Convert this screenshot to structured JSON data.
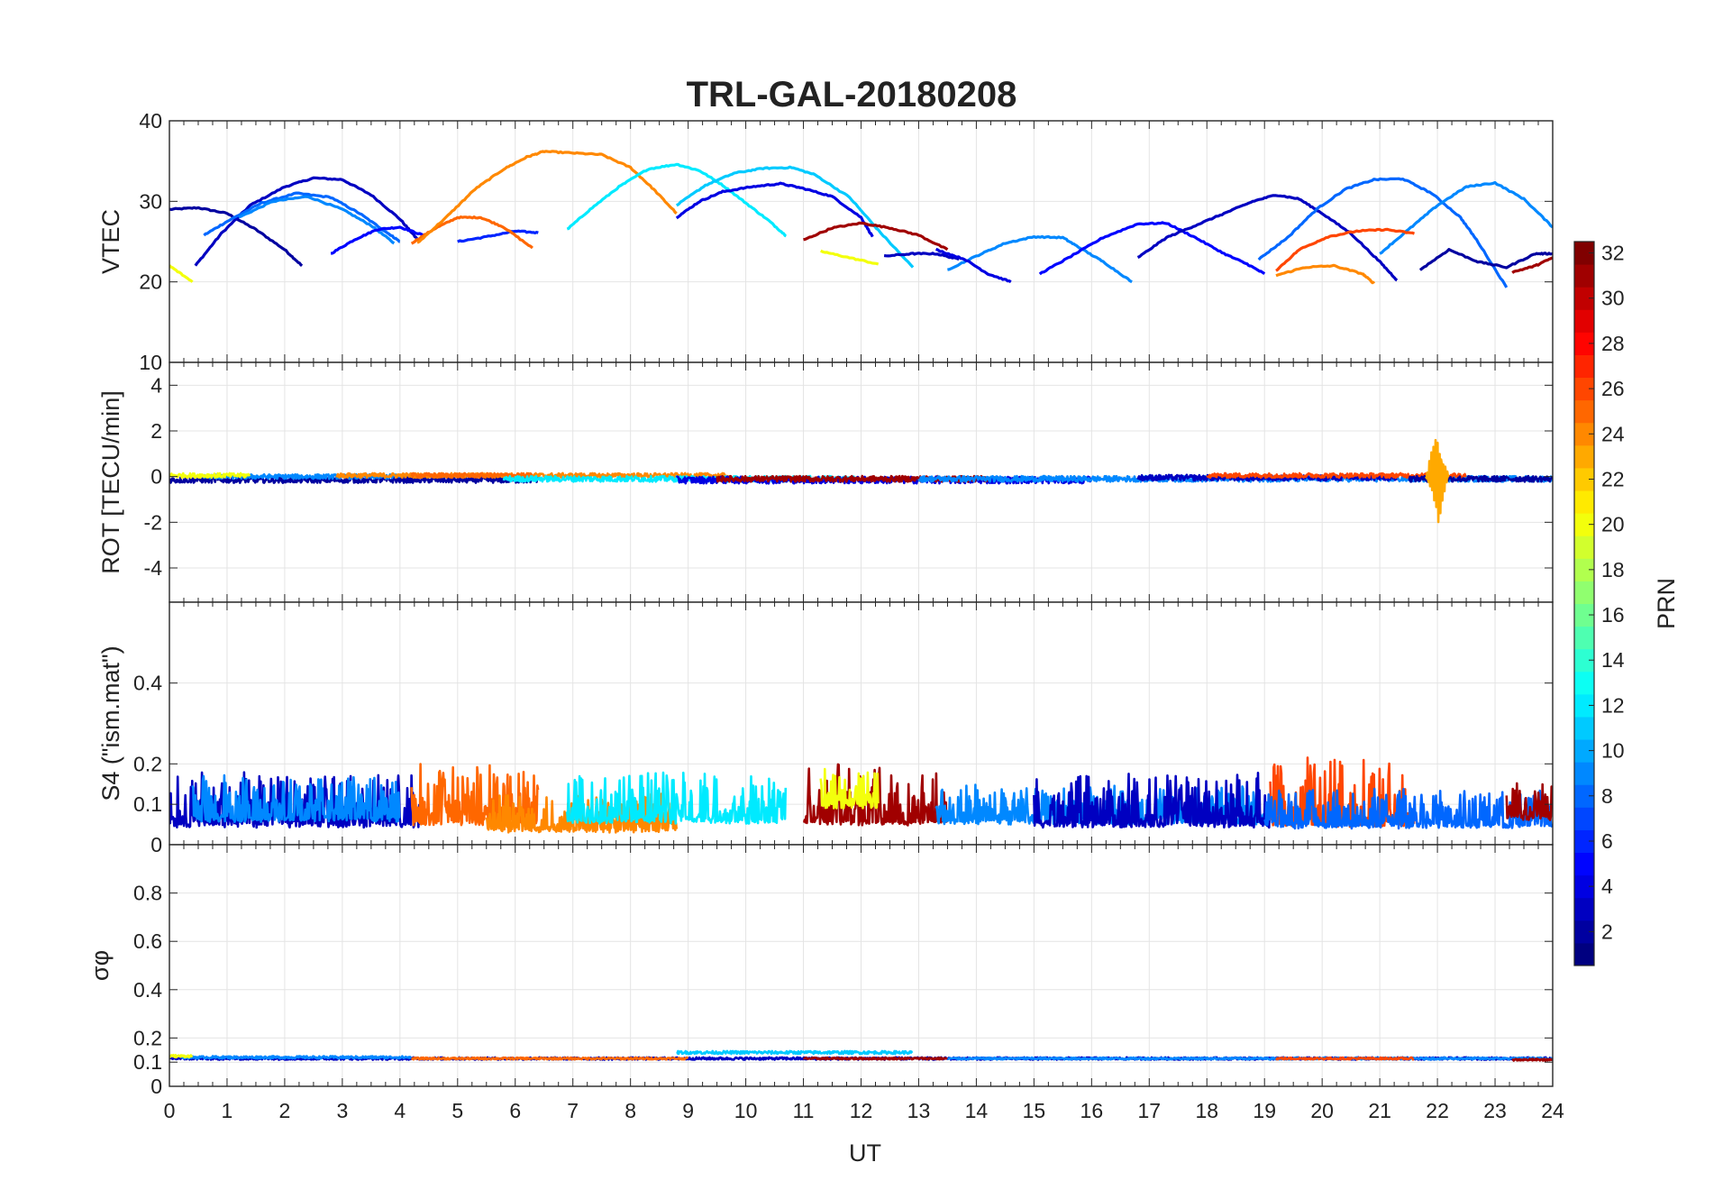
{
  "chart_data": {
    "type": "line",
    "title": "TRL-GAL-20180208",
    "xlabel": "UT",
    "xlim": [
      0,
      24
    ],
    "xticks": [
      "0",
      "1",
      "2",
      "3",
      "4",
      "5",
      "6",
      "7",
      "8",
      "9",
      "10",
      "11",
      "12",
      "13",
      "14",
      "15",
      "16",
      "17",
      "18",
      "19",
      "20",
      "21",
      "22",
      "23",
      "24"
    ],
    "colorbar": {
      "label": "PRN",
      "clim": [
        1,
        32
      ],
      "ticks": [
        "2",
        "4",
        "6",
        "8",
        "10",
        "12",
        "14",
        "16",
        "18",
        "20",
        "22",
        "24",
        "26",
        "28",
        "30",
        "32"
      ],
      "colormap": "jet"
    },
    "panels": [
      {
        "name": "vtec",
        "ylabel": "VTEC",
        "ylim": [
          10,
          40
        ],
        "yticks": [
          "10",
          "20",
          "30",
          "40"
        ],
        "series": [
          {
            "prn": 2,
            "x": [
              0.0,
              0.5,
              1.0,
              1.5,
              2.0,
              2.3
            ],
            "y": [
              29,
              29.2,
              28.5,
              26.5,
              24,
              22
            ]
          },
          {
            "prn": 3,
            "x": [
              0.45,
              0.9,
              1.4,
              2.0,
              2.5,
              3.0,
              3.5,
              4.0,
              4.3
            ],
            "y": [
              22,
              26,
              29.5,
              31.8,
              32.9,
              32.7,
              30.8,
              27.8,
              25.3
            ]
          },
          {
            "prn": 8,
            "x": [
              0.6,
              1.0,
              1.6,
              2.2,
              2.8,
              3.3,
              3.8,
              4.0
            ],
            "y": [
              25.8,
              27.5,
              29.8,
              31,
              30.5,
              28.5,
              26,
              25
            ]
          },
          {
            "prn": 9,
            "x": [
              1.2,
              1.8,
              2.4,
              3.0,
              3.5,
              3.9
            ],
            "y": [
              28,
              30,
              30.6,
              29,
              27,
              24.8
            ]
          },
          {
            "prn": 5,
            "x": [
              2.8,
              3.2,
              3.6,
              4.0,
              4.4
            ],
            "y": [
              23.5,
              25.2,
              26.5,
              26.8,
              25.8
            ]
          },
          {
            "prn": 6,
            "x": [
              5.0,
              5.5,
              6.0,
              6.4
            ],
            "y": [
              25,
              25.6,
              26.3,
              26.1
            ]
          },
          {
            "prn": 25,
            "x": [
              4.2,
              4.6,
              5.0,
              5.4,
              5.8,
              6.3
            ],
            "y": [
              24.8,
              26.6,
              28,
              28,
              26.8,
              24.2
            ]
          },
          {
            "prn": 24,
            "x": [
              4.3,
              4.8,
              5.3,
              5.8,
              6.2,
              6.5,
              7.0,
              7.5,
              8.0,
              8.4,
              8.8
            ],
            "y": [
              24.8,
              28,
              31.5,
              34,
              35.5,
              36.2,
              36,
              35.8,
              34.2,
              31.5,
              28.5
            ]
          },
          {
            "prn": 12,
            "x": [
              6.9,
              7.3,
              7.8,
              8.3,
              8.8,
              9.2,
              9.6,
              10.0,
              10.4,
              10.7
            ],
            "y": [
              26.5,
              29,
              31.8,
              34,
              34.6,
              33.8,
              32,
              29.8,
              27.6,
              25.7
            ]
          },
          {
            "prn": 4,
            "x": [
              8.8,
              9.2,
              9.6,
              10.1,
              10.6,
              11.0,
              11.5,
              12.0,
              12.2
            ],
            "y": [
              28,
              30,
              31.2,
              31.8,
              32.2,
              31.6,
              30.6,
              28,
              25.6
            ]
          },
          {
            "prn": 11,
            "x": [
              8.8,
              9.3,
              9.8,
              10.3,
              10.8,
              11.2,
              11.8,
              12.3,
              12.9
            ],
            "y": [
              29.5,
              32,
              33.5,
              34.1,
              34.2,
              33.3,
              30.5,
              26.4,
              21.8
            ]
          },
          {
            "prn": 31,
            "x": [
              11.0,
              11.5,
              12.0,
              12.5,
              13.0,
              13.5
            ],
            "y": [
              25.2,
              26.7,
              27.3,
              26.7,
              25.8,
              24
            ]
          },
          {
            "prn": 20,
            "x": [
              11.3,
              11.8,
              12.3
            ],
            "y": [
              23.8,
              23,
              22.2
            ]
          },
          {
            "prn": 3,
            "x": [
              12.4,
              12.9,
              13.3,
              13.7
            ],
            "y": [
              23.2,
              23.5,
              23.5,
              22.8
            ]
          },
          {
            "prn": 9,
            "x": [
              13.5,
              14.0,
              14.5,
              15.0,
              15.5,
              15.8,
              16.2,
              16.7
            ],
            "y": [
              21.5,
              23.2,
              24.8,
              25.6,
              25.5,
              24.2,
              22.5,
              20
            ]
          },
          {
            "prn": 4,
            "x": [
              13.3,
              13.8,
              14.2,
              14.6
            ],
            "y": [
              24,
              22.8,
              21,
              20
            ]
          },
          {
            "prn": 5,
            "x": [
              15.1,
              15.6,
              16.2,
              16.8,
              17.3,
              17.8,
              18.3,
              18.7,
              19.0
            ],
            "y": [
              21,
              23,
              25.5,
              27.2,
              27.3,
              25.5,
              23.5,
              22.2,
              21
            ]
          },
          {
            "prn": 3,
            "x": [
              16.8,
              17.3,
              17.8,
              18.3,
              18.8,
              19.2,
              19.6,
              20.0,
              20.5,
              21.0,
              21.3
            ],
            "y": [
              23,
              25.5,
              27,
              28.5,
              30,
              30.8,
              30.3,
              28.5,
              26,
              22.5,
              20.2
            ]
          },
          {
            "prn": 8,
            "x": [
              18.9,
              19.4,
              19.9,
              20.4,
              20.9,
              21.4,
              21.9,
              22.4,
              22.7,
              23.2
            ],
            "y": [
              22.8,
              25.5,
              29,
              31.5,
              32.7,
              32.8,
              31,
              28,
              25,
              19.3
            ]
          },
          {
            "prn": 9,
            "x": [
              21.0,
              21.5,
              22.0,
              22.5,
              23.0,
              23.5,
              24.0
            ],
            "y": [
              23.5,
              26.5,
              29.5,
              31.8,
              32.3,
              30.3,
              26.8
            ]
          },
          {
            "prn": 26,
            "x": [
              19.2,
              19.6,
              20.1,
              20.6,
              21.1,
              21.6
            ],
            "y": [
              21.4,
              24,
              25.6,
              26.3,
              26.5,
              26
            ]
          },
          {
            "prn": 24,
            "x": [
              19.2,
              19.7,
              20.2,
              20.7,
              20.9
            ],
            "y": [
              20.8,
              21.8,
              22,
              21,
              19.8
            ]
          },
          {
            "prn": 2,
            "x": [
              21.7,
              22.2,
              22.7,
              23.2,
              23.7,
              24.0
            ],
            "y": [
              21.5,
              24,
              22.5,
              21.8,
              23.5,
              23.5
            ]
          },
          {
            "prn": 31,
            "x": [
              23.3,
              23.7,
              24.0
            ],
            "y": [
              21.2,
              22,
              23
            ]
          },
          {
            "prn": 20,
            "x": [
              0.0,
              0.4
            ],
            "y": [
              22,
              20
            ]
          }
        ]
      },
      {
        "name": "rot",
        "ylabel": "ROT [TECU/min]",
        "ylim": [
          -5.5,
          5
        ],
        "yticks": [
          "-4",
          "-2",
          "0",
          "2",
          "4"
        ],
        "series": [
          {
            "prn": 2,
            "mean": -0.15,
            "amp": 0.25,
            "x0": 0.0,
            "x1": 6.4
          },
          {
            "prn": 9,
            "mean": 0.0,
            "amp": 0.2,
            "x0": 0.6,
            "x1": 4.0
          },
          {
            "prn": 20,
            "mean": 0.05,
            "amp": 0.2,
            "x0": 0.0,
            "x1": 1.4
          },
          {
            "prn": 24,
            "mean": 0.05,
            "amp": 0.2,
            "x0": 2.9,
            "x1": 9.7
          },
          {
            "prn": 25,
            "mean": 0.05,
            "amp": 0.2,
            "x0": 4.2,
            "x1": 6.3
          },
          {
            "prn": 12,
            "mean": -0.1,
            "amp": 0.25,
            "x0": 5.8,
            "x1": 11.9
          },
          {
            "prn": 4,
            "mean": -0.15,
            "amp": 0.3,
            "x0": 8.8,
            "x1": 16.0
          },
          {
            "prn": 31,
            "mean": -0.1,
            "amp": 0.25,
            "x0": 9.5,
            "x1": 14.2
          },
          {
            "prn": 9,
            "mean": -0.1,
            "amp": 0.25,
            "x0": 13.0,
            "x1": 24.0
          },
          {
            "prn": 3,
            "mean": -0.05,
            "amp": 0.25,
            "x0": 16.8,
            "x1": 21.3
          },
          {
            "prn": 26,
            "mean": 0.05,
            "amp": 0.2,
            "x0": 18.0,
            "x1": 22.5
          },
          {
            "prn": 2,
            "mean": -0.1,
            "amp": 0.25,
            "x0": 21.5,
            "x1": 24.0
          },
          {
            "prn": 23,
            "mean": 0.0,
            "amp": 0.25,
            "x0": 21.8,
            "x1": 22.2,
            "burst": 2.3
          }
        ]
      },
      {
        "name": "s4",
        "ylabel": "S4 (\"ism.mat\")",
        "ylim": [
          0,
          0.6
        ],
        "yticks": [
          "0",
          "0.1",
          "0.2",
          "0.4"
        ],
        "series": [
          {
            "prn": 3,
            "mean": 0.07,
            "amp": 0.07,
            "x0": 0.0,
            "x1": 4.4
          },
          {
            "prn": 9,
            "mean": 0.08,
            "amp": 0.06,
            "x0": 0.4,
            "x1": 4.0
          },
          {
            "prn": 25,
            "mean": 0.08,
            "amp": 0.08,
            "x0": 4.2,
            "x1": 6.4
          },
          {
            "prn": 24,
            "mean": 0.05,
            "amp": 0.05,
            "x0": 5.5,
            "x1": 8.8
          },
          {
            "prn": 12,
            "mean": 0.08,
            "amp": 0.07,
            "x0": 6.9,
            "x1": 10.7
          },
          {
            "prn": 31,
            "mean": 0.08,
            "amp": 0.08,
            "x0": 11.0,
            "x1": 13.5
          },
          {
            "prn": 20,
            "mean": 0.11,
            "amp": 0.05,
            "x0": 11.3,
            "x1": 12.3
          },
          {
            "prn": 9,
            "mean": 0.07,
            "amp": 0.05,
            "x0": 13.3,
            "x1": 19.0
          },
          {
            "prn": 3,
            "mean": 0.07,
            "amp": 0.07,
            "x0": 15.0,
            "x1": 19.1
          },
          {
            "prn": 26,
            "mean": 0.08,
            "amp": 0.09,
            "x0": 19.1,
            "x1": 21.6
          },
          {
            "prn": 8,
            "mean": 0.06,
            "amp": 0.05,
            "x0": 19.0,
            "x1": 24.0
          },
          {
            "prn": 31,
            "mean": 0.08,
            "amp": 0.05,
            "x0": 23.2,
            "x1": 24.0
          }
        ]
      },
      {
        "name": "sigma",
        "ylabel": "σφ",
        "ylim": [
          0,
          1
        ],
        "yticks": [
          "0",
          "0.1",
          "0.2",
          "0.4",
          "0.6",
          "0.8"
        ],
        "series": [
          {
            "prn": 3,
            "mean": 0.115,
            "amp": 0.01,
            "x0": 0.0,
            "x1": 24.0
          },
          {
            "prn": 9,
            "mean": 0.12,
            "amp": 0.01,
            "x0": 0.2,
            "x1": 4.2
          },
          {
            "prn": 20,
            "mean": 0.125,
            "amp": 0.01,
            "x0": 0.0,
            "x1": 0.4
          },
          {
            "prn": 25,
            "mean": 0.115,
            "amp": 0.008,
            "x0": 4.2,
            "x1": 9.0
          },
          {
            "prn": 11,
            "mean": 0.14,
            "amp": 0.012,
            "x0": 8.8,
            "x1": 12.9
          },
          {
            "prn": 31,
            "mean": 0.115,
            "amp": 0.008,
            "x0": 11.0,
            "x1": 13.5
          },
          {
            "prn": 9,
            "mean": 0.115,
            "amp": 0.008,
            "x0": 13.5,
            "x1": 24.0
          },
          {
            "prn": 26,
            "mean": 0.115,
            "amp": 0.008,
            "x0": 19.2,
            "x1": 21.6
          },
          {
            "prn": 31,
            "mean": 0.11,
            "amp": 0.008,
            "x0": 23.3,
            "x1": 24.0
          }
        ]
      }
    ]
  }
}
